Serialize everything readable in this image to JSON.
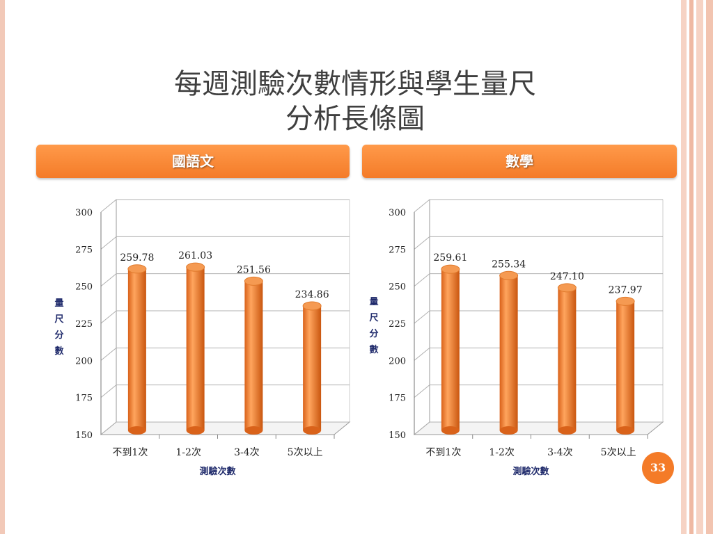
{
  "slide": {
    "title_line1": "每週測驗次數情形與學生量尺",
    "title_line2": "分析長條圖",
    "page_number": "33"
  },
  "colors": {
    "accent": "#f47b28",
    "bar": "#f08030",
    "axis_label": "#1f2a6b"
  },
  "chart_data": [
    {
      "type": "bar",
      "title": "國語文",
      "categories": [
        "不到1次",
        "1-2次",
        "3-4次",
        "5次以上"
      ],
      "values": [
        259.78,
        261.03,
        251.56,
        234.86
      ],
      "value_labels": [
        "259.78",
        "261.03",
        "251.56",
        "234.86"
      ],
      "xlabel": "測驗次數",
      "ylabel": "量尺分數",
      "ylim": [
        150,
        300
      ],
      "yticks": [
        "150",
        "175",
        "200",
        "225",
        "250",
        "275",
        "300"
      ],
      "grid": true
    },
    {
      "type": "bar",
      "title": "數學",
      "categories": [
        "不到1次",
        "1-2次",
        "3-4次",
        "5次以上"
      ],
      "values": [
        259.61,
        255.34,
        247.1,
        237.97
      ],
      "value_labels": [
        "259.61",
        "255.34",
        "247.10",
        "237.97"
      ],
      "xlabel": "測驗次數",
      "ylabel": "量尺分數",
      "ylim": [
        150,
        300
      ],
      "yticks": [
        "150",
        "175",
        "200",
        "225",
        "250",
        "275",
        "300"
      ],
      "grid": true
    }
  ]
}
